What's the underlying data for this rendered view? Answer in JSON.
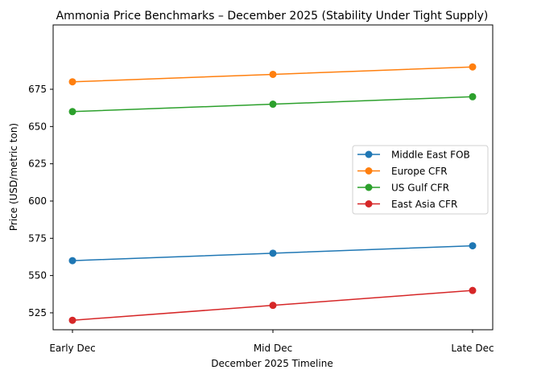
{
  "chart_data": {
    "type": "line",
    "title": "Ammonia Price Benchmarks – December 2025 (Stability Under Tight Supply)",
    "xlabel": "December 2025 Timeline",
    "ylabel": "Price (USD/metric ton)",
    "categories": [
      "Early Dec",
      "Mid Dec",
      "Late Dec"
    ],
    "yticks": [
      525,
      550,
      575,
      600,
      625,
      650,
      675
    ],
    "ylim": [
      511,
      697
    ],
    "grid": false,
    "legend_position": "center right",
    "series": [
      {
        "name": "Middle East FOB",
        "color": "#1f77b4",
        "values": [
          560,
          565,
          570
        ]
      },
      {
        "name": "Europe CFR",
        "color": "#ff7f0e",
        "values": [
          680,
          685,
          690
        ]
      },
      {
        "name": "US Gulf CFR",
        "color": "#2ca02c",
        "values": [
          660,
          665,
          670
        ]
      },
      {
        "name": "East Asia CFR",
        "color": "#d62728",
        "values": [
          520,
          530,
          540
        ]
      }
    ]
  }
}
